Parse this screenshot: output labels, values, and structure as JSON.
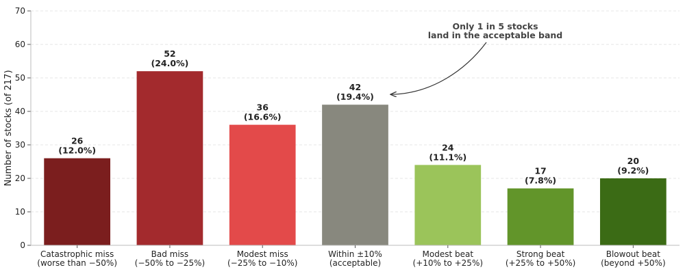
{
  "chart_data": {
    "type": "bar",
    "ylabel": "Number of stocks (of 217)",
    "ylim": [
      0,
      70
    ],
    "yticks": [
      0,
      10,
      20,
      30,
      40,
      50,
      60,
      70
    ],
    "grid": true,
    "categories": [
      [
        "Catastrophic miss",
        "(worse than −50%)"
      ],
      [
        "Bad miss",
        "(−50% to −25%)"
      ],
      [
        "Modest miss",
        "(−25% to −10%)"
      ],
      [
        "Within ±10%",
        "(acceptable)"
      ],
      [
        "Modest beat",
        "(+10% to +25%)"
      ],
      [
        "Strong beat",
        "(+25% to +50%)"
      ],
      [
        "Blowout beat",
        "(beyond +50%)"
      ]
    ],
    "values": [
      26,
      52,
      36,
      42,
      24,
      17,
      20
    ],
    "percent_labels": [
      "(12.0%)",
      "(24.0%)",
      "(16.6%)",
      "(19.4%)",
      "(11.1%)",
      "(7.8%)",
      "(9.2%)"
    ],
    "colors": [
      "#7b1e1e",
      "#a32a2d",
      "#e34a4a",
      "#88887e",
      "#9bc45a",
      "#62952a",
      "#3b6b15"
    ],
    "annotation": {
      "lines": [
        "Only 1 in 5 stocks",
        "land in the acceptable band"
      ],
      "target_category_index": 3
    }
  }
}
